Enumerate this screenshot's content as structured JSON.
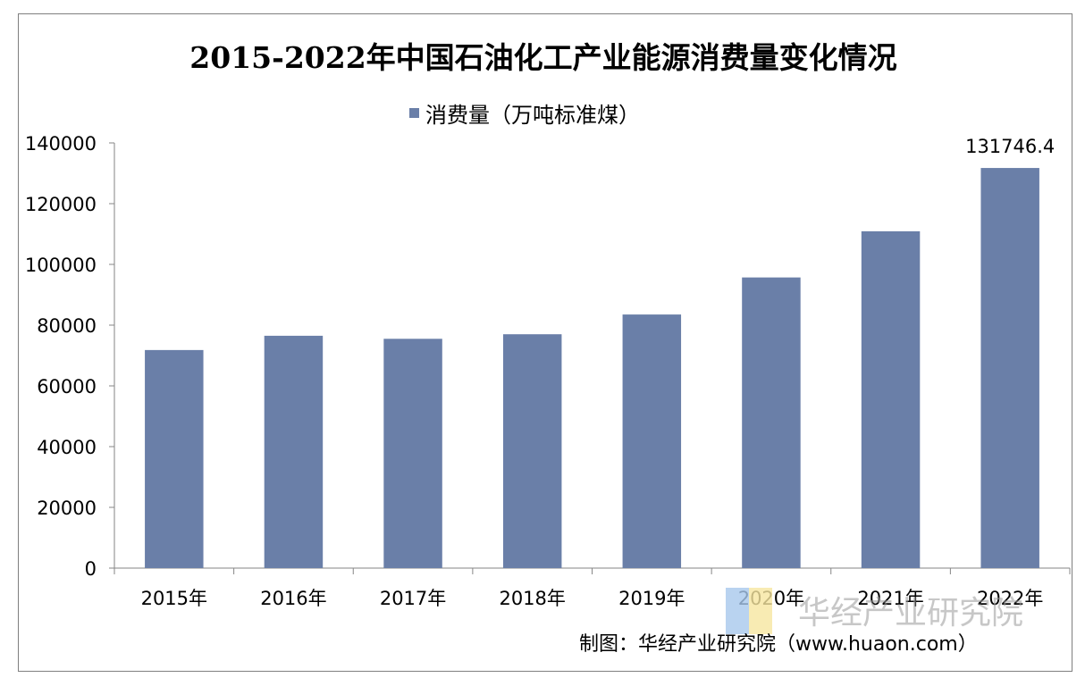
{
  "chart_data": {
    "type": "bar",
    "title": "2015-2022年中国石油化工产业能源消费量变化情况",
    "categories": [
      "2015年",
      "2016年",
      "2017年",
      "2018年",
      "2019年",
      "2020年",
      "2021年",
      "2022年"
    ],
    "series": [
      {
        "name": "消费量（万吨标准煤）",
        "values": [
          71800,
          76500,
          75500,
          77000,
          83500,
          95700,
          110900,
          131746.4
        ],
        "color": "#6a7fa8"
      }
    ],
    "data_labels": [
      {
        "category": "2022年",
        "text": "131746.4"
      }
    ],
    "yticks": [
      "0",
      "20000",
      "40000",
      "60000",
      "80000",
      "100000",
      "120000",
      "140000"
    ],
    "ylim": [
      0,
      140000
    ],
    "xlabel": "",
    "ylabel": "",
    "grid": false,
    "legend_position": "top-center"
  },
  "source": "制图：华经产业研究院（www.huaon.com）",
  "watermark": {
    "text": "华经产业研究院",
    "colors": [
      "#a8c8ec",
      "#f6e6a0"
    ]
  }
}
